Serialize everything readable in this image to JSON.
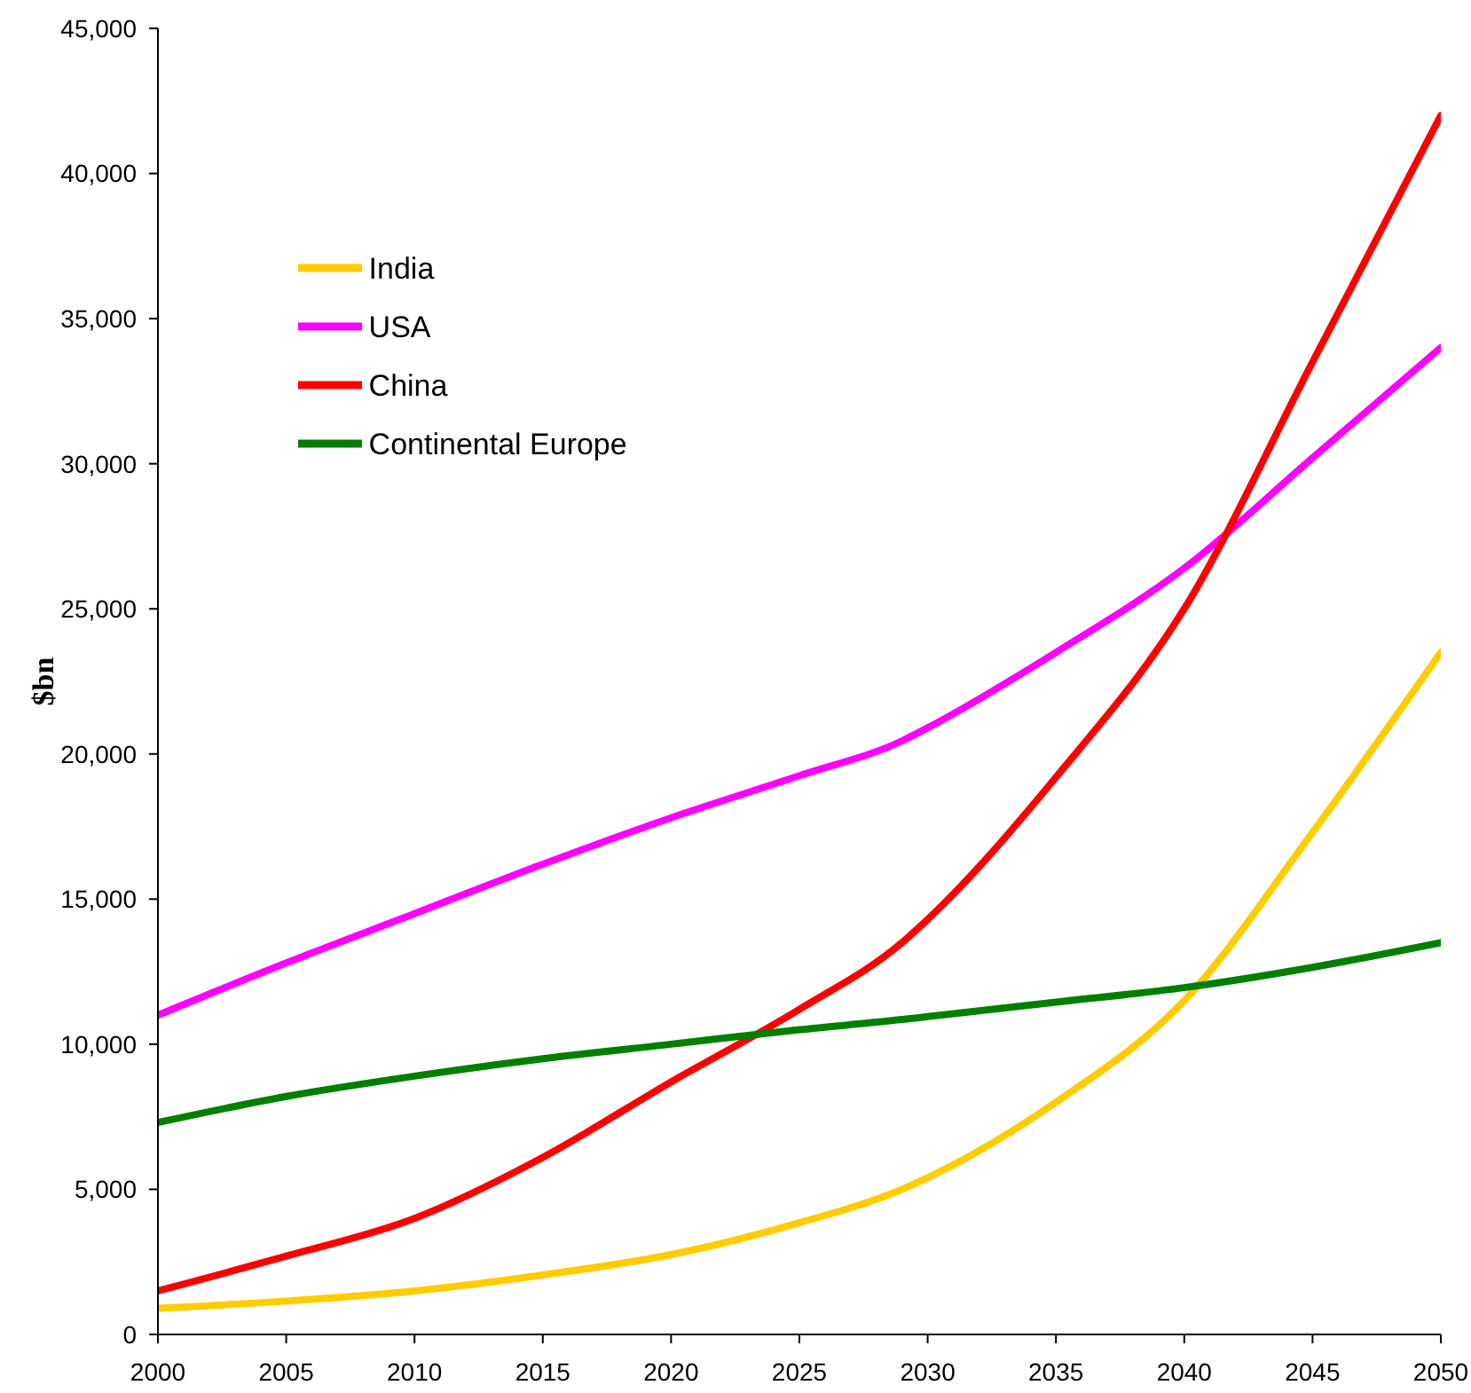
{
  "chart_data": {
    "type": "line",
    "ylabel": "$bn",
    "x": [
      2000,
      2005,
      2010,
      2015,
      2020,
      2025,
      2029,
      2030,
      2035,
      2040,
      2045,
      2050
    ],
    "series": [
      {
        "name": "India",
        "color": "#ffcc00",
        "values": [
          900,
          1150,
          1500,
          2050,
          2750,
          3850,
          5000,
          5400,
          8000,
          11500,
          17300,
          23500
        ]
      },
      {
        "name": "USA",
        "color": "#ff00ff",
        "values": [
          11000,
          12800,
          14500,
          16200,
          17800,
          19250,
          20450,
          20900,
          23500,
          26400,
          30200,
          34000
        ]
      },
      {
        "name": "China",
        "color": "#ff0000",
        "values": [
          1500,
          2700,
          4000,
          6100,
          8700,
          11200,
          13500,
          14300,
          19200,
          25000,
          33500,
          42000
        ]
      },
      {
        "name": "Continental Europe",
        "color": "#008000",
        "values": [
          7300,
          8200,
          8900,
          9500,
          10000,
          10500,
          10850,
          10950,
          11450,
          11950,
          12650,
          13500
        ]
      }
    ],
    "xlim": [
      2000,
      2050
    ],
    "xticks": [
      2000,
      2005,
      2010,
      2015,
      2020,
      2025,
      2030,
      2035,
      2040,
      2045,
      2050
    ],
    "ylim": [
      0,
      45000
    ],
    "yticks": [
      0,
      {
        "value": 5000,
        "label": "5,000"
      },
      {
        "value": 10000,
        "label": "10,000"
      },
      {
        "value": 15000,
        "label": "15,000"
      },
      {
        "value": 20000,
        "label": "20,000"
      },
      {
        "value": 25000,
        "label": "25,000"
      },
      {
        "value": 30000,
        "label": "30,000"
      },
      {
        "value": 35000,
        "label": "35,000"
      },
      {
        "value": 40000,
        "label": "40,000"
      },
      {
        "value": 45000,
        "label": "45,000"
      }
    ],
    "legend": "top left",
    "line_style": "solid"
  }
}
